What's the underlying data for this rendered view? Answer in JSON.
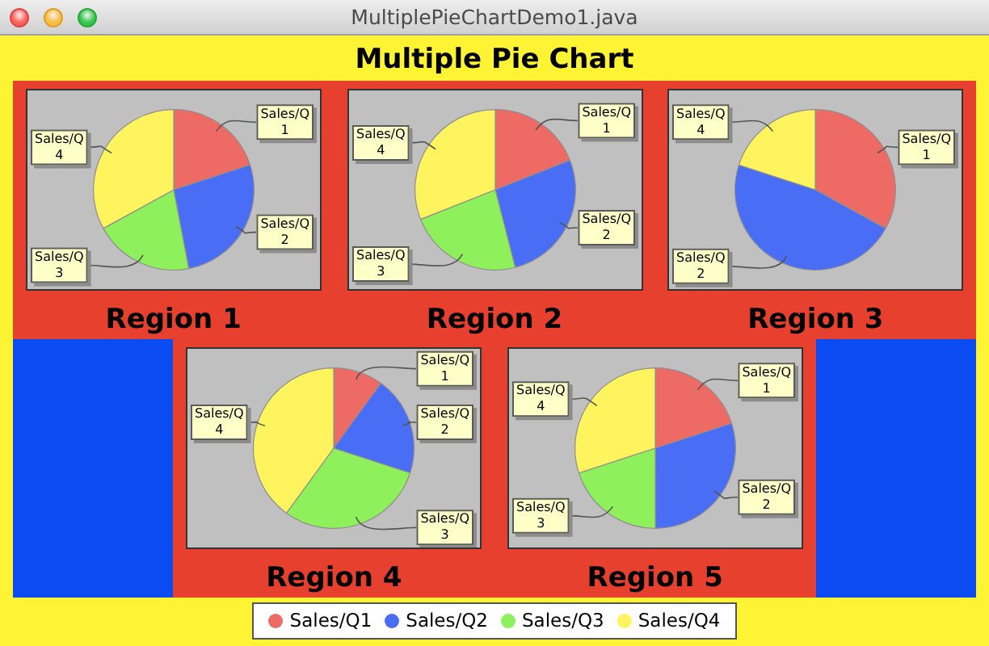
{
  "chart_data": [
    {
      "type": "other",
      "title": "Multiple Pie Chart",
      "annotations": [
        "MultiplePieChartDemo1.java"
      ]
    },
    {
      "type": "pie",
      "title": "Region 1",
      "categories": [
        "Sales/Q1",
        "Sales/Q2",
        "Sales/Q3",
        "Sales/Q4"
      ],
      "values": [
        20,
        27,
        20,
        33
      ],
      "colors": [
        "#ee6a64",
        "#4a6df6",
        "#8ef05a",
        "#fff35e"
      ],
      "legend": "bottom"
    },
    {
      "type": "pie",
      "title": "Region 2",
      "categories": [
        "Sales/Q1",
        "Sales/Q2",
        "Sales/Q3",
        "Sales/Q4"
      ],
      "values": [
        19,
        27,
        23,
        31
      ],
      "colors": [
        "#ee6a64",
        "#4a6df6",
        "#8ef05a",
        "#fff35e"
      ]
    },
    {
      "type": "pie",
      "title": "Region 3",
      "categories": [
        "Sales/Q1",
        "Sales/Q2",
        "Sales/Q4"
      ],
      "values": [
        33,
        47,
        20
      ],
      "colors": [
        "#ee6a64",
        "#4a6df6",
        "#fff35e"
      ]
    },
    {
      "type": "pie",
      "title": "Region 4",
      "categories": [
        "Sales/Q1",
        "Sales/Q2",
        "Sales/Q3",
        "Sales/Q4"
      ],
      "values": [
        10,
        20,
        30,
        40
      ],
      "colors": [
        "#ee6a64",
        "#4a6df6",
        "#8ef05a",
        "#fff35e"
      ]
    },
    {
      "type": "pie",
      "title": "Region 5",
      "categories": [
        "Sales/Q1",
        "Sales/Q2",
        "Sales/Q3",
        "Sales/Q4"
      ],
      "values": [
        20,
        30,
        20,
        30
      ],
      "colors": [
        "#ee6a64",
        "#4a6df6",
        "#8ef05a",
        "#fff35e"
      ]
    }
  ]
}
